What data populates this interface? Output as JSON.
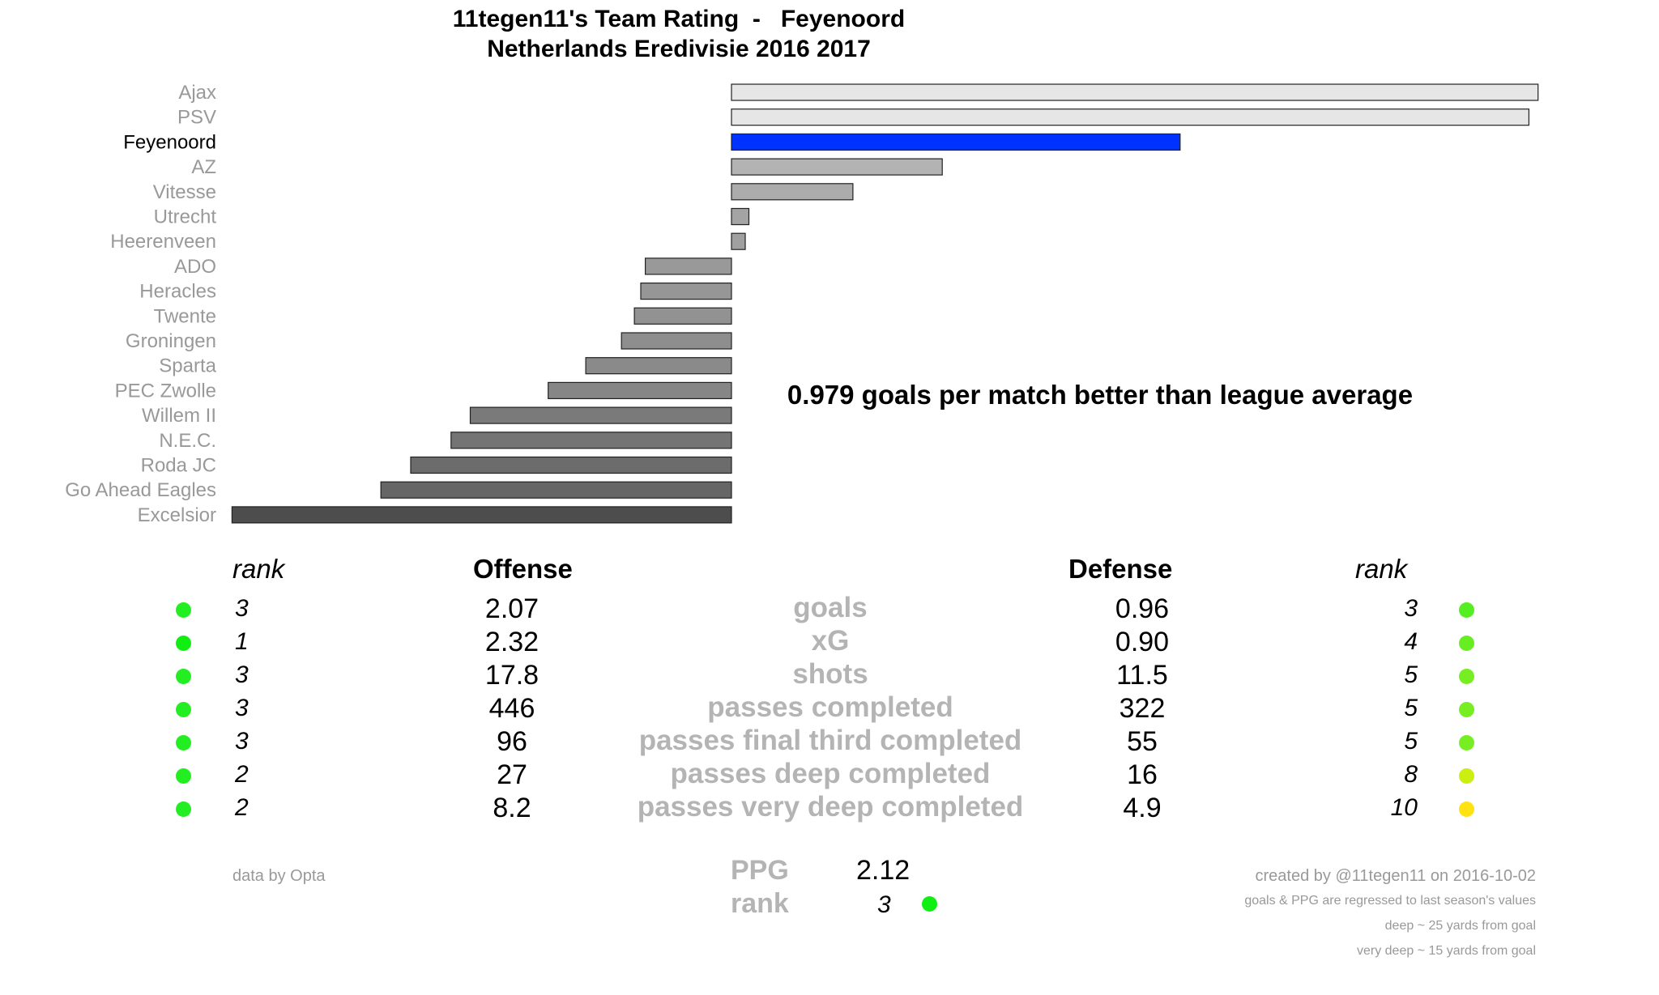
{
  "chart_data": {
    "type": "bar",
    "title": "11tegen11's Team Rating  -   Feyenoord",
    "subtitle": "Netherlands Eredivisie 2016 2017",
    "highlight": "Feyenoord",
    "highlight_color": "#0032ff",
    "categories": [
      "Ajax",
      "PSV",
      "Feyenoord",
      "AZ",
      "Vitesse",
      "Utrecht",
      "Heerenveen",
      "ADO",
      "Heracles",
      "Twente",
      "Groningen",
      "Sparta",
      "PEC Zwolle",
      "Willem II",
      "N.E.C.",
      "Roda JC",
      "Go Ahead Eagles",
      "Excelsior"
    ],
    "values": [
      1.76,
      1.74,
      0.979,
      0.46,
      0.265,
      0.038,
      0.03,
      -0.188,
      -0.198,
      -0.212,
      -0.24,
      -0.318,
      -0.4,
      -0.57,
      -0.612,
      -0.7,
      -0.765,
      -1.09
    ],
    "xlim": [
      -1.09,
      1.76
    ],
    "bar_colors": [
      "#e6e6e6",
      "#e6e6e6",
      "#0032ff",
      "#b3b3b3",
      "#acacac",
      "#a4a4a4",
      "#a0a0a0",
      "#999999",
      "#969696",
      "#929292",
      "#8e8e8e",
      "#8a8a8a",
      "#868686",
      "#7a7a7a",
      "#747474",
      "#6c6c6c",
      "#666666",
      "#4d4d4d"
    ],
    "annotation": "0.979 goals per match better than league average"
  },
  "stats": {
    "rank_header_left": "rank",
    "offense_header": "Offense",
    "defense_header": "Defense",
    "rank_header_right": "rank",
    "rows": [
      {
        "metric": "goals",
        "off_rank": "3",
        "off_val": "2.07",
        "def_val": "0.96",
        "def_rank": "3",
        "off_color": "#22ee22",
        "def_color": "#55ee22"
      },
      {
        "metric": "xG",
        "off_rank": "1",
        "off_val": "2.32",
        "def_val": "0.90",
        "def_rank": "4",
        "off_color": "#11ee11",
        "def_color": "#66ee22"
      },
      {
        "metric": "shots",
        "off_rank": "3",
        "off_val": "17.8",
        "def_val": "11.5",
        "def_rank": "5",
        "off_color": "#22ee22",
        "def_color": "#77ee22"
      },
      {
        "metric": "passes completed",
        "off_rank": "3",
        "off_val": "446",
        "def_val": "322",
        "def_rank": "5",
        "off_color": "#22ee22",
        "def_color": "#77ee22"
      },
      {
        "metric": "passes final third completed",
        "off_rank": "3",
        "off_val": "96",
        "def_val": "55",
        "def_rank": "5",
        "off_color": "#22ee22",
        "def_color": "#77ee22"
      },
      {
        "metric": "passes deep completed",
        "off_rank": "2",
        "off_val": "27",
        "def_val": "16",
        "def_rank": "8",
        "off_color": "#22ee22",
        "def_color": "#ccee11"
      },
      {
        "metric": "passes very deep completed",
        "off_rank": "2",
        "off_val": "8.2",
        "def_val": "4.9",
        "def_rank": "10",
        "off_color": "#22ee22",
        "def_color": "#ffe211"
      }
    ]
  },
  "footer": {
    "source": "data by Opta",
    "ppg_label": "PPG",
    "ppg_value": "2.12",
    "rank_label": "rank",
    "rank_value": "3",
    "rank_color": "#11ee11",
    "created": "created by @11tegen11 on 2016-10-02",
    "note1": "goals & PPG are regressed to last season's values",
    "note2": "deep ~ 25 yards from goal",
    "note3": "very deep ~ 15 yards from goal"
  }
}
